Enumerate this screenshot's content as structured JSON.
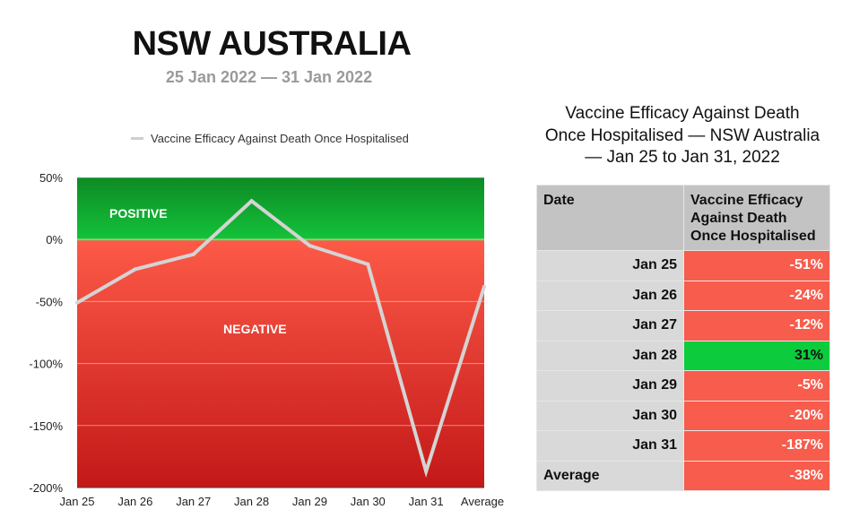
{
  "header": {
    "title": "NSW AUSTRALIA",
    "subtitle": "25 Jan 2022 — 31 Jan 2022"
  },
  "chart_data": {
    "type": "line",
    "title": "",
    "xlabel": "",
    "ylabel": "",
    "categories": [
      "Jan 25",
      "Jan 26",
      "Jan 27",
      "Jan 28",
      "Jan 29",
      "Jan 30",
      "Jan 31",
      "Average"
    ],
    "series": [
      {
        "name": "Vaccine Efficacy Against Death Once Hospitalised",
        "values": [
          -51,
          -24,
          -12,
          31,
          -5,
          -20,
          -187,
          -38
        ],
        "color": "#d4d4d4"
      }
    ],
    "ylim": [
      -200,
      50
    ],
    "yticks": [
      50,
      0,
      -50,
      -100,
      -150,
      -200
    ],
    "ytick_labels": [
      "50%",
      "0%",
      "-50%",
      "-100%",
      "-150%",
      "-200%"
    ],
    "legend_position": "top",
    "grid": true,
    "regions": [
      {
        "label": "POSITIVE",
        "color": "#0fa52e"
      },
      {
        "label": "NEGATIVE",
        "color": "#e8352c"
      }
    ]
  },
  "table": {
    "title_lines": [
      "Vaccine Efficacy Against Death",
      "Once Hospitalised — NSW Australia",
      "— Jan 25 to Jan 31, 2022"
    ],
    "headers": {
      "date": "Date",
      "value": "Vaccine Efficacy Against Death Once Hospitalised"
    },
    "rows": [
      {
        "date": "Jan 25",
        "value": "-51%",
        "status": "neg"
      },
      {
        "date": "Jan 26",
        "value": "-24%",
        "status": "neg"
      },
      {
        "date": "Jan 27",
        "value": "-12%",
        "status": "neg"
      },
      {
        "date": "Jan 28",
        "value": "31%",
        "status": "pos"
      },
      {
        "date": "Jan 29",
        "value": "-5%",
        "status": "neg"
      },
      {
        "date": "Jan 30",
        "value": "-20%",
        "status": "neg"
      },
      {
        "date": "Jan 31",
        "value": "-187%",
        "status": "neg"
      }
    ],
    "average": {
      "label": "Average",
      "value": "-38%",
      "status": "neg"
    }
  }
}
